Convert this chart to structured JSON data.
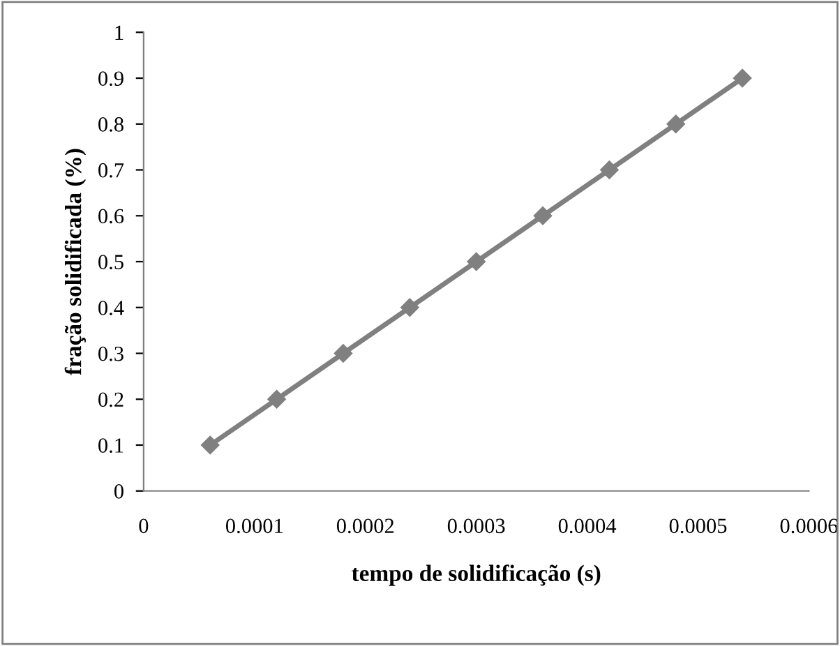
{
  "chart_data": {
    "type": "line",
    "xlabel": "tempo de solidificação (s)",
    "ylabel": "fração solidificada (%)",
    "x": [
      6e-05,
      0.00012,
      0.00018,
      0.00024,
      0.0003,
      0.00036,
      0.00042,
      0.00048,
      0.00054
    ],
    "series": [
      {
        "color": "#808080",
        "values": [
          0.1,
          0.2,
          0.3,
          0.4,
          0.5,
          0.6,
          0.7,
          0.8,
          0.9
        ]
      }
    ],
    "xlim": [
      0,
      0.0006
    ],
    "xticks": [
      0,
      0.0001,
      0.0002,
      0.0003,
      0.0004,
      0.0005,
      0.0006
    ],
    "ylim": [
      0,
      1
    ],
    "yticks": [
      0,
      0.1,
      0.2,
      0.3,
      0.4,
      0.5,
      0.6,
      0.7,
      0.8,
      0.9,
      1
    ],
    "grid": false,
    "legend": false,
    "marker": "diamond",
    "line_style": "solid"
  }
}
